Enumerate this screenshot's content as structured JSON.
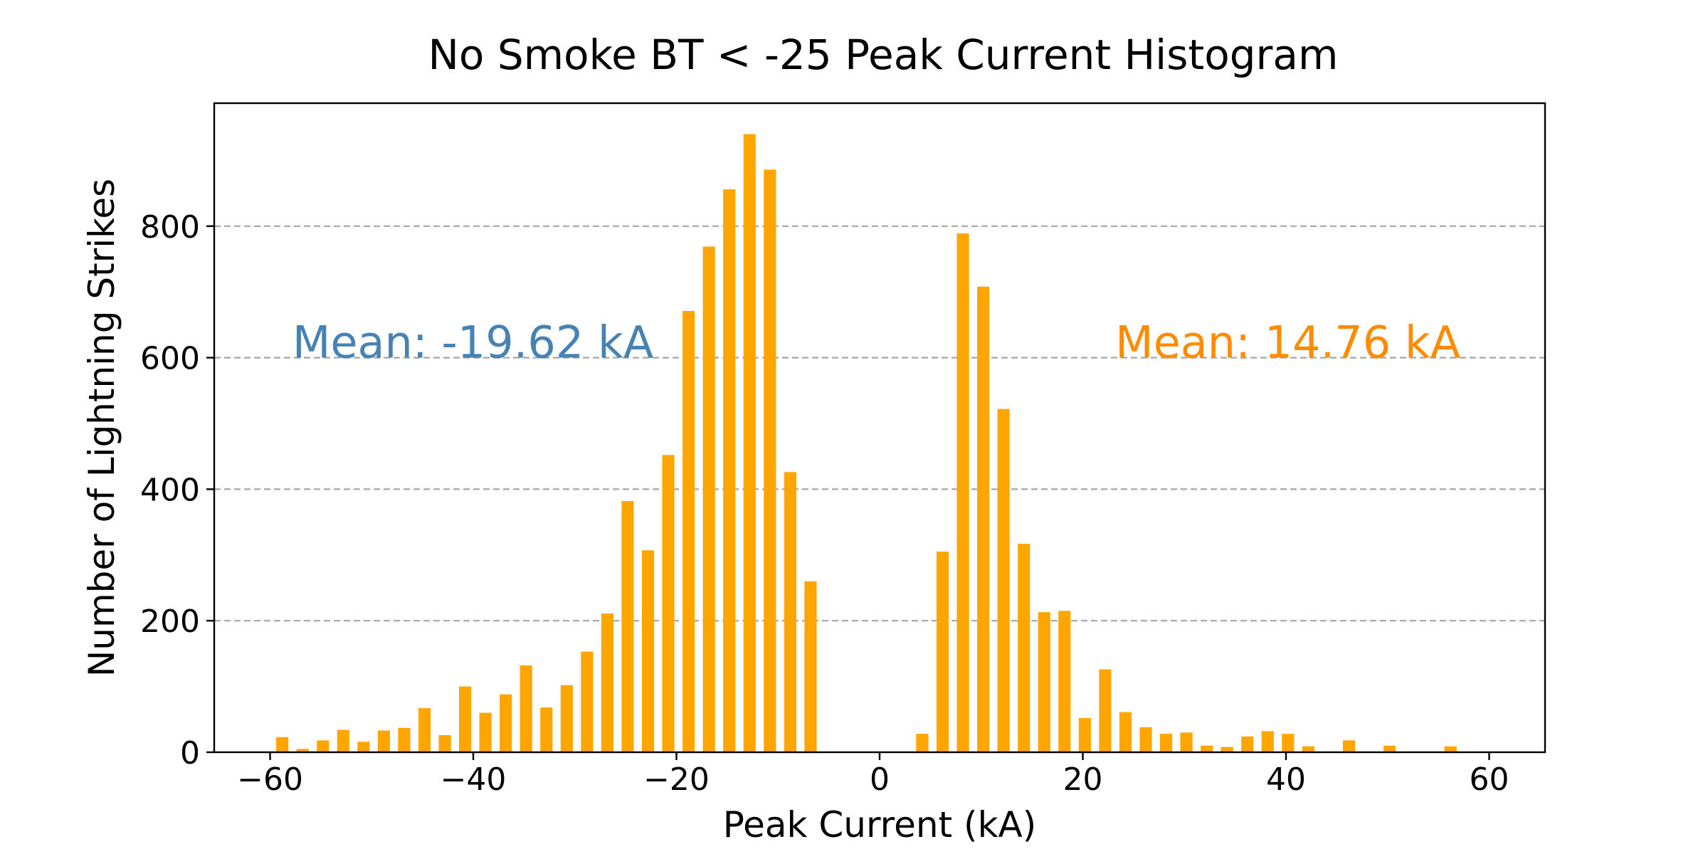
{
  "chart_data": {
    "type": "bar",
    "title": "No Smoke BT < -25 Peak Current Histogram",
    "xlabel": "Peak Current (kA)",
    "ylabel": "Number of Lightning Strikes",
    "xlim": [
      -65.5,
      65.5
    ],
    "ylim": [
      0,
      987
    ],
    "xticks": [
      -60,
      -40,
      -20,
      0,
      20,
      40,
      60
    ],
    "xtick_labels": [
      "−60",
      "−40",
      "−20",
      "0",
      "20",
      "40",
      "60"
    ],
    "yticks": [
      0,
      200,
      400,
      600,
      800
    ],
    "ytick_labels": [
      "0",
      "200",
      "400",
      "600",
      "800"
    ],
    "grid": "y-dashed",
    "bar_width": 1.2,
    "bar_color": "#ffa500",
    "bars": [
      {
        "x": -58.8,
        "value": 23
      },
      {
        "x": -56.8,
        "value": 5
      },
      {
        "x": -54.8,
        "value": 18
      },
      {
        "x": -52.8,
        "value": 34
      },
      {
        "x": -50.8,
        "value": 16
      },
      {
        "x": -48.8,
        "value": 33
      },
      {
        "x": -46.8,
        "value": 37
      },
      {
        "x": -44.8,
        "value": 67
      },
      {
        "x": -42.8,
        "value": 26
      },
      {
        "x": -40.8,
        "value": 100
      },
      {
        "x": -38.8,
        "value": 60
      },
      {
        "x": -36.8,
        "value": 88
      },
      {
        "x": -34.8,
        "value": 132
      },
      {
        "x": -32.8,
        "value": 68
      },
      {
        "x": -30.8,
        "value": 102
      },
      {
        "x": -28.8,
        "value": 153
      },
      {
        "x": -26.8,
        "value": 211
      },
      {
        "x": -24.8,
        "value": 382
      },
      {
        "x": -22.8,
        "value": 307
      },
      {
        "x": -20.8,
        "value": 452
      },
      {
        "x": -18.8,
        "value": 671
      },
      {
        "x": -16.8,
        "value": 769
      },
      {
        "x": -14.8,
        "value": 856
      },
      {
        "x": -12.8,
        "value": 940
      },
      {
        "x": -10.8,
        "value": 886
      },
      {
        "x": -8.8,
        "value": 426
      },
      {
        "x": -6.8,
        "value": 260
      },
      {
        "x": 4.2,
        "value": 28
      },
      {
        "x": 6.2,
        "value": 305
      },
      {
        "x": 8.2,
        "value": 789
      },
      {
        "x": 10.2,
        "value": 708
      },
      {
        "x": 12.2,
        "value": 522
      },
      {
        "x": 14.2,
        "value": 317
      },
      {
        "x": 16.2,
        "value": 213
      },
      {
        "x": 18.2,
        "value": 215
      },
      {
        "x": 20.2,
        "value": 52
      },
      {
        "x": 22.2,
        "value": 126
      },
      {
        "x": 24.2,
        "value": 61
      },
      {
        "x": 26.2,
        "value": 38
      },
      {
        "x": 28.2,
        "value": 28
      },
      {
        "x": 30.2,
        "value": 30
      },
      {
        "x": 32.2,
        "value": 10
      },
      {
        "x": 34.2,
        "value": 8
      },
      {
        "x": 36.2,
        "value": 24
      },
      {
        "x": 38.2,
        "value": 32
      },
      {
        "x": 40.2,
        "value": 28
      },
      {
        "x": 42.2,
        "value": 9
      },
      {
        "x": 46.2,
        "value": 18
      },
      {
        "x": 50.2,
        "value": 10
      },
      {
        "x": 56.2,
        "value": 9
      }
    ],
    "annotations": [
      {
        "text": "Mean: -19.62 kA",
        "color": "#4682b4",
        "x": -57.8,
        "y": 600
      },
      {
        "text": "Mean: 14.76 kA",
        "color": "#ff8c00",
        "x": 23.2,
        "y": 600
      }
    ]
  }
}
